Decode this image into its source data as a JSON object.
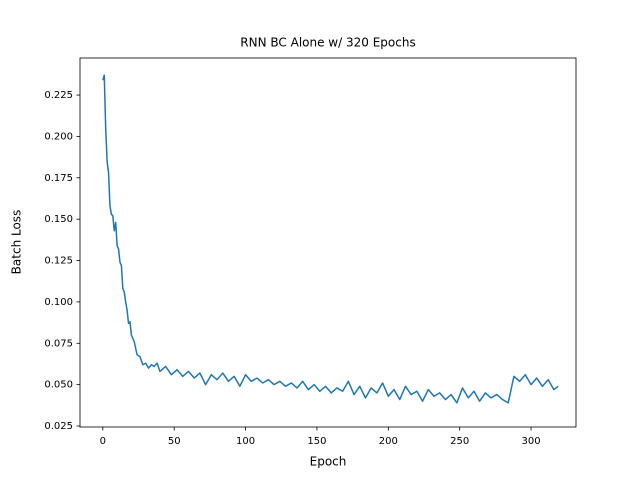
{
  "chart_data": {
    "type": "line",
    "title": "RNN BC Alone w/ 320 Epochs",
    "x_label": "Epoch",
    "y_label": "Batch Loss",
    "x": [
      0,
      1,
      2,
      3,
      4,
      5,
      6,
      7,
      8,
      9,
      10,
      11,
      12,
      13,
      14,
      15,
      16,
      17,
      18,
      19,
      20,
      22,
      24,
      26,
      28,
      30,
      32,
      34,
      36,
      38,
      40,
      44,
      48,
      52,
      56,
      60,
      64,
      68,
      72,
      76,
      80,
      84,
      88,
      92,
      96,
      100,
      104,
      108,
      112,
      116,
      120,
      124,
      128,
      132,
      136,
      140,
      144,
      148,
      152,
      156,
      160,
      164,
      168,
      172,
      176,
      180,
      184,
      188,
      192,
      196,
      200,
      204,
      208,
      212,
      216,
      220,
      224,
      228,
      232,
      236,
      240,
      244,
      248,
      252,
      256,
      260,
      264,
      268,
      272,
      276,
      280,
      284,
      288,
      292,
      296,
      300,
      304,
      308,
      312,
      316,
      319
    ],
    "series": [
      {
        "color": "#1f77b4",
        "values": [
          0.234,
          0.237,
          0.205,
          0.185,
          0.178,
          0.158,
          0.153,
          0.152,
          0.143,
          0.148,
          0.134,
          0.132,
          0.124,
          0.122,
          0.108,
          0.106,
          0.1,
          0.095,
          0.087,
          0.088,
          0.08,
          0.076,
          0.068,
          0.067,
          0.062,
          0.063,
          0.06,
          0.062,
          0.061,
          0.063,
          0.058,
          0.061,
          0.056,
          0.059,
          0.055,
          0.058,
          0.054,
          0.057,
          0.05,
          0.056,
          0.053,
          0.057,
          0.052,
          0.055,
          0.049,
          0.056,
          0.052,
          0.054,
          0.051,
          0.053,
          0.05,
          0.052,
          0.049,
          0.051,
          0.048,
          0.052,
          0.047,
          0.05,
          0.046,
          0.049,
          0.045,
          0.048,
          0.046,
          0.052,
          0.044,
          0.049,
          0.042,
          0.048,
          0.045,
          0.051,
          0.043,
          0.047,
          0.041,
          0.049,
          0.044,
          0.046,
          0.04,
          0.047,
          0.043,
          0.045,
          0.041,
          0.044,
          0.039,
          0.048,
          0.042,
          0.046,
          0.04,
          0.045,
          0.042,
          0.044,
          0.041,
          0.039,
          0.055,
          0.052,
          0.056,
          0.05,
          0.054,
          0.049,
          0.053,
          0.047,
          0.049
        ]
      }
    ],
    "xlim": [
      -16,
      331.5
    ],
    "xticks": [
      0,
      50,
      100,
      150,
      200,
      250,
      300
    ],
    "ylim": [
      0.0244,
      0.2474
    ],
    "yticks": [
      0.025,
      {
        "value": 0.05,
        "label": "0.050"
      },
      0.075,
      {
        "value": 0.1,
        "label": "0.100"
      },
      0.125,
      {
        "value": 0.15,
        "label": "0.150"
      },
      0.175,
      {
        "value": 0.2,
        "label": "0.200"
      },
      0.225
    ],
    "grid": false
  }
}
